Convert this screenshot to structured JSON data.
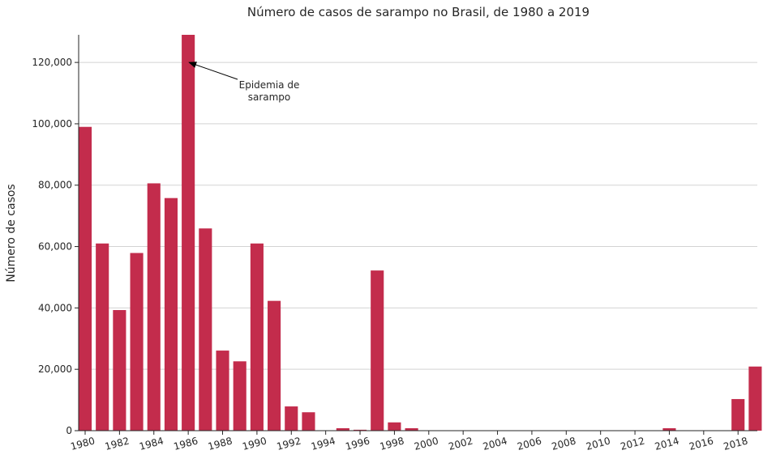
{
  "chart_data": {
    "type": "bar",
    "title": "Número de casos de sarampo no Brasil, de 1980 a 2019",
    "xlabel": "",
    "ylabel": "Número de casos",
    "categories": [
      1980,
      1981,
      1982,
      1983,
      1984,
      1985,
      1986,
      1987,
      1988,
      1989,
      1990,
      1991,
      1992,
      1993,
      1994,
      1995,
      1996,
      1997,
      1998,
      1999,
      2000,
      2001,
      2002,
      2003,
      2004,
      2005,
      2006,
      2007,
      2008,
      2009,
      2010,
      2011,
      2012,
      2013,
      2014,
      2015,
      2016,
      2017,
      2018,
      2019
    ],
    "values": [
      99000,
      61000,
      39300,
      57900,
      80600,
      75800,
      129000,
      65900,
      26100,
      22600,
      61000,
      42300,
      7900,
      6000,
      0,
      800,
      300,
      52200,
      2700,
      800,
      0,
      0,
      0,
      0,
      0,
      0,
      0,
      0,
      0,
      0,
      0,
      0,
      0,
      0,
      800,
      0,
      0,
      0,
      10300,
      20900
    ],
    "ylim": [
      0,
      129000
    ],
    "y_ticks": [
      0,
      20000,
      40000,
      60000,
      80000,
      100000,
      120000
    ],
    "y_tick_labels": [
      "0",
      "20,000",
      "40,000",
      "60,000",
      "80,000",
      "100,000",
      "120,000"
    ],
    "x_tick_labels": [
      "1980",
      "1982",
      "1984",
      "1986",
      "1988",
      "1990",
      "1992",
      "1994",
      "1996",
      "1998",
      "2000",
      "2002",
      "2004",
      "2006",
      "2008",
      "2010",
      "2012",
      "2014",
      "2016",
      "2018"
    ],
    "grid": "horizontal",
    "bar_color": "#c32c4c",
    "annotation": {
      "line1": "Epidemia de",
      "line2": "sarampo",
      "target_x": 1986,
      "target_y": 120000
    }
  }
}
